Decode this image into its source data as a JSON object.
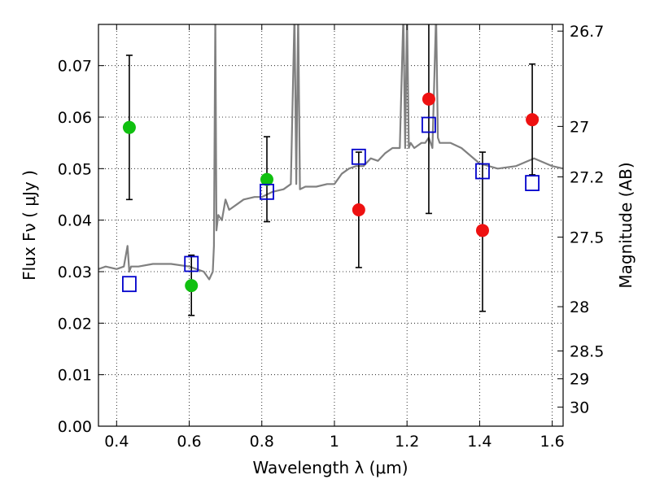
{
  "chart_data": {
    "type": "scatter",
    "xlabel": "Wavelength  λ (μm)",
    "ylabel": "Flux  Fν  ( μJy )",
    "y2label": "Magnitude (AB)",
    "xlim": [
      0.35,
      1.63
    ],
    "ylim": [
      0.0,
      0.078
    ],
    "grid": true,
    "x_ticks": [
      0.4,
      0.6,
      0.8,
      1.0,
      1.2,
      1.4,
      1.6
    ],
    "x_tick_labels": [
      "0.4",
      "0.6",
      "0.8",
      "1",
      "1.2",
      "1.4",
      "1.6"
    ],
    "y_ticks": [
      0.0,
      0.01,
      0.02,
      0.03,
      0.04,
      0.05,
      0.06,
      0.07
    ],
    "y_tick_labels": [
      "0.00",
      "0.01",
      "0.02",
      "0.03",
      "0.04",
      "0.05",
      "0.06",
      "0.07"
    ],
    "y2_ticks": [
      {
        "label": "26.7",
        "flux": 0.0767
      },
      {
        "label": "27",
        "flux": 0.0582
      },
      {
        "label": "27.2",
        "flux": 0.0484
      },
      {
        "label": "27.5",
        "flux": 0.0367
      },
      {
        "label": "28",
        "flux": 0.0232
      },
      {
        "label": "28.5",
        "flux": 0.0146
      },
      {
        "label": "29",
        "flux": 0.0092
      },
      {
        "label": "30",
        "flux": 0.0037
      }
    ],
    "colors": {
      "green_points": "#10c010",
      "red_points": "#ee1111",
      "model_squares": "#0000cc",
      "sed_curve": "#808080",
      "error_bars": "#000000"
    },
    "series": [
      {
        "marker": "circle",
        "color": "#10c010",
        "points": [
          {
            "x": 0.435,
            "y": 0.058,
            "ylo": 0.044,
            "yhi": 0.072
          },
          {
            "x": 0.606,
            "y": 0.0273,
            "ylo": 0.0215,
            "yhi": 0.0332
          },
          {
            "x": 0.814,
            "y": 0.0479,
            "ylo": 0.0397,
            "yhi": 0.0562
          }
        ]
      },
      {
        "marker": "circle",
        "color": "#ee1111",
        "points": [
          {
            "x": 1.067,
            "y": 0.042,
            "ylo": 0.0308,
            "yhi": 0.0532
          },
          {
            "x": 1.26,
            "y": 0.0635,
            "ylo": 0.0413,
            "yhi": 0.08
          },
          {
            "x": 1.408,
            "y": 0.038,
            "ylo": 0.0223,
            "yhi": 0.0532
          },
          {
            "x": 1.545,
            "y": 0.0595,
            "ylo": 0.0488,
            "yhi": 0.0703
          }
        ]
      },
      {
        "marker": "square",
        "color": "#0000cc",
        "points": [
          {
            "x": 0.435,
            "y": 0.0276
          },
          {
            "x": 0.606,
            "y": 0.0315
          },
          {
            "x": 0.814,
            "y": 0.0455
          },
          {
            "x": 1.067,
            "y": 0.0523
          },
          {
            "x": 1.26,
            "y": 0.0585
          },
          {
            "x": 1.408,
            "y": 0.0495
          },
          {
            "x": 1.545,
            "y": 0.0472
          }
        ]
      },
      {
        "marker": "line",
        "color": "#808080",
        "x": [
          0.35,
          0.37,
          0.4,
          0.42,
          0.43,
          0.435,
          0.44,
          0.46,
          0.5,
          0.55,
          0.6,
          0.64,
          0.655,
          0.665,
          0.668,
          0.672,
          0.675,
          0.68,
          0.69,
          0.7,
          0.71,
          0.73,
          0.75,
          0.78,
          0.8,
          0.83,
          0.86,
          0.88,
          0.89,
          0.895,
          0.9,
          0.905,
          0.92,
          0.95,
          0.98,
          1.0,
          1.02,
          1.04,
          1.06,
          1.08,
          1.1,
          1.12,
          1.14,
          1.16,
          1.18,
          1.19,
          1.195,
          1.2,
          1.205,
          1.21,
          1.22,
          1.24,
          1.25,
          1.26,
          1.27,
          1.28,
          1.285,
          1.29,
          1.3,
          1.32,
          1.35,
          1.4,
          1.45,
          1.5,
          1.55,
          1.6,
          1.63
        ],
        "y": [
          0.0305,
          0.031,
          0.0305,
          0.031,
          0.035,
          0.03,
          0.031,
          0.031,
          0.0315,
          0.0315,
          0.031,
          0.03,
          0.0285,
          0.03,
          0.035,
          0.08,
          0.038,
          0.041,
          0.04,
          0.044,
          0.042,
          0.043,
          0.044,
          0.0445,
          0.0445,
          0.0455,
          0.046,
          0.047,
          0.08,
          0.047,
          0.08,
          0.046,
          0.0465,
          0.0465,
          0.047,
          0.047,
          0.049,
          0.05,
          0.0505,
          0.0505,
          0.052,
          0.0515,
          0.053,
          0.054,
          0.054,
          0.08,
          0.054,
          0.08,
          0.054,
          0.055,
          0.054,
          0.055,
          0.055,
          0.056,
          0.054,
          0.08,
          0.056,
          0.055,
          0.055,
          0.055,
          0.054,
          0.051,
          0.05,
          0.0505,
          0.052,
          0.0505,
          0.05
        ]
      }
    ]
  }
}
